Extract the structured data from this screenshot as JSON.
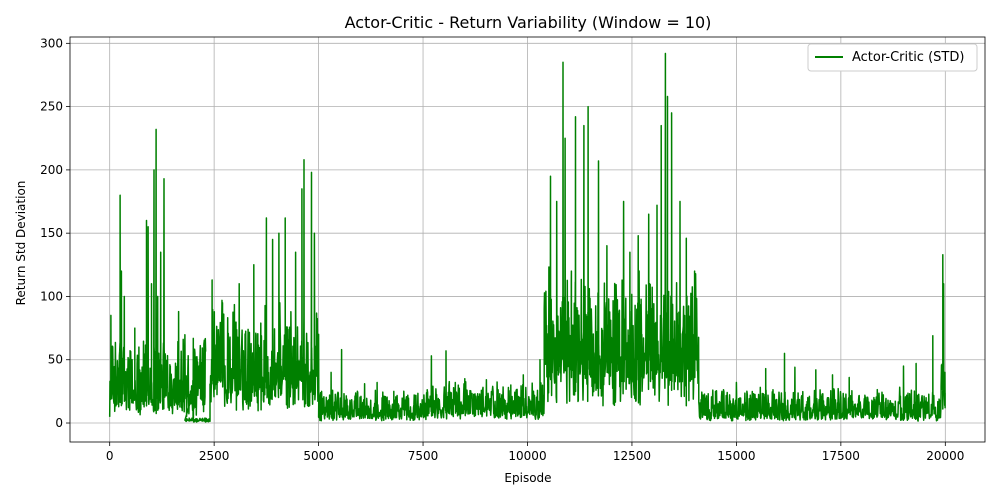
{
  "chart_data": {
    "type": "line",
    "title": "Actor-Critic - Return Variability (Window = 10)",
    "xlabel": "Episode",
    "ylabel": "Return Std Deviation",
    "xlim": [
      -950,
      20950
    ],
    "ylim": [
      -15,
      305
    ],
    "xticks": [
      0,
      2500,
      5000,
      7500,
      10000,
      12500,
      15000,
      17500,
      20000
    ],
    "yticks": [
      0,
      50,
      100,
      150,
      200,
      250,
      300
    ],
    "grid": true,
    "legend_position": "top-right",
    "series": [
      {
        "name": "Actor-Critic (STD)",
        "color": "#008000",
        "segments": [
          {
            "start": 0,
            "end": 2300,
            "base": 15,
            "spread": 55,
            "spikes": [
              [
                30,
                85
              ],
              [
                250,
                180
              ],
              [
                280,
                120
              ],
              [
                350,
                100
              ],
              [
                600,
                75
              ],
              [
                700,
                60
              ],
              [
                880,
                160
              ],
              [
                920,
                155
              ],
              [
                1000,
                110
              ],
              [
                1060,
                200
              ],
              [
                1110,
                232
              ],
              [
                1150,
                100
              ],
              [
                1220,
                135
              ],
              [
                1300,
                193
              ],
              [
                1450,
                45
              ],
              [
                1650,
                88
              ],
              [
                2000,
                5
              ]
            ]
          },
          {
            "start": 1800,
            "end": 2400,
            "base": 2,
            "spread": 2,
            "spikes": []
          },
          {
            "start": 2400,
            "end": 5000,
            "base": 30,
            "spread": 60,
            "spikes": [
              [
                2450,
                113
              ],
              [
                2700,
                95
              ],
              [
                3100,
                110
              ],
              [
                3450,
                125
              ],
              [
                3750,
                162
              ],
              [
                3900,
                145
              ],
              [
                4050,
                150
              ],
              [
                4200,
                162
              ],
              [
                4450,
                135
              ],
              [
                4600,
                185
              ],
              [
                4650,
                208
              ],
              [
                4830,
                198
              ],
              [
                4900,
                150
              ],
              [
                5000,
                70
              ]
            ]
          },
          {
            "start": 5000,
            "end": 7600,
            "base": 5,
            "spread": 20,
            "spikes": [
              [
                5300,
                40
              ],
              [
                5550,
                58
              ],
              [
                6100,
                31
              ],
              [
                6400,
                32
              ],
              [
                6800,
                25
              ]
            ]
          },
          {
            "start": 7600,
            "end": 10400,
            "base": 8,
            "spread": 25,
            "spikes": [
              [
                7700,
                53
              ],
              [
                8050,
                57
              ],
              [
                8500,
                35
              ],
              [
                9600,
                30
              ],
              [
                9900,
                38
              ],
              [
                10300,
                50
              ]
            ]
          },
          {
            "start": 10400,
            "end": 14100,
            "base": 40,
            "spread": 80,
            "spikes": [
              [
                10550,
                195
              ],
              [
                10700,
                175
              ],
              [
                10850,
                285
              ],
              [
                10900,
                225
              ],
              [
                11050,
                120
              ],
              [
                11150,
                242
              ],
              [
                11350,
                235
              ],
              [
                11450,
                250
              ],
              [
                11700,
                207
              ],
              [
                11900,
                140
              ],
              [
                12300,
                175
              ],
              [
                12450,
                135
              ],
              [
                12650,
                148
              ],
              [
                12900,
                165
              ],
              [
                13100,
                172
              ],
              [
                13200,
                235
              ],
              [
                13300,
                292
              ],
              [
                13350,
                258
              ],
              [
                13450,
                245
              ],
              [
                13650,
                175
              ],
              [
                13800,
                146
              ],
              [
                14000,
                120
              ]
            ]
          },
          {
            "start": 14100,
            "end": 19900,
            "base": 5,
            "spread": 22,
            "spikes": [
              [
                14500,
                25
              ],
              [
                15000,
                32
              ],
              [
                15700,
                43
              ],
              [
                16150,
                55
              ],
              [
                16400,
                44
              ],
              [
                16900,
                42
              ],
              [
                17300,
                38
              ],
              [
                17700,
                36
              ],
              [
                18600,
                12
              ],
              [
                19000,
                45
              ],
              [
                19300,
                47
              ],
              [
                19700,
                69
              ]
            ]
          },
          {
            "start": 19900,
            "end": 20000,
            "base": 20,
            "spread": 40,
            "spikes": [
              [
                19940,
                133
              ],
              [
                19960,
                110
              ],
              [
                19990,
                40
              ]
            ]
          }
        ]
      }
    ]
  }
}
